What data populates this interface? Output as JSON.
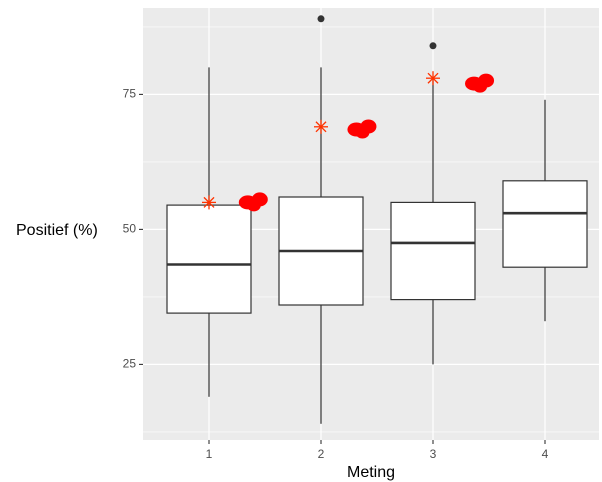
{
  "chart_data": {
    "type": "boxplot",
    "xlabel": "Meting",
    "ylabel": "Positief (%)",
    "categories": [
      "1",
      "2",
      "3",
      "4"
    ],
    "ylim": [
      11,
      91
    ],
    "yticks": [
      25,
      50,
      75
    ],
    "grid": true,
    "boxes": [
      {
        "category": "1",
        "whisker_low": 19,
        "q1": 34.5,
        "median": 43.5,
        "q3": 54.5,
        "whisker_high": 80,
        "outliers": []
      },
      {
        "category": "2",
        "whisker_low": 14,
        "q1": 36,
        "median": 46,
        "q3": 56,
        "whisker_high": 80,
        "outliers": [
          89
        ]
      },
      {
        "category": "3",
        "whisker_low": 25,
        "q1": 37,
        "median": 47.5,
        "q3": 55,
        "whisker_high": 78,
        "outliers": [
          84
        ]
      },
      {
        "category": "4",
        "whisker_low": 33,
        "q1": 43,
        "median": 53,
        "q3": 59,
        "whisker_high": 74,
        "outliers": []
      }
    ],
    "star_markers": [
      {
        "category": "1",
        "y": 55
      },
      {
        "category": "2",
        "y": 69
      },
      {
        "category": "3",
        "y": 78
      }
    ],
    "red_blobs": [
      {
        "x": 1.4,
        "y": 55
      },
      {
        "x": 2.37,
        "y": 68.5
      },
      {
        "x": 3.42,
        "y": 77
      }
    ],
    "colors": {
      "panel": "#ebebeb",
      "grid": "#ffffff",
      "box_line": "#333333",
      "box_fill": "#ffffff",
      "outlier": "#333333",
      "star": "#ff3300",
      "blob": "#ff0000"
    }
  }
}
